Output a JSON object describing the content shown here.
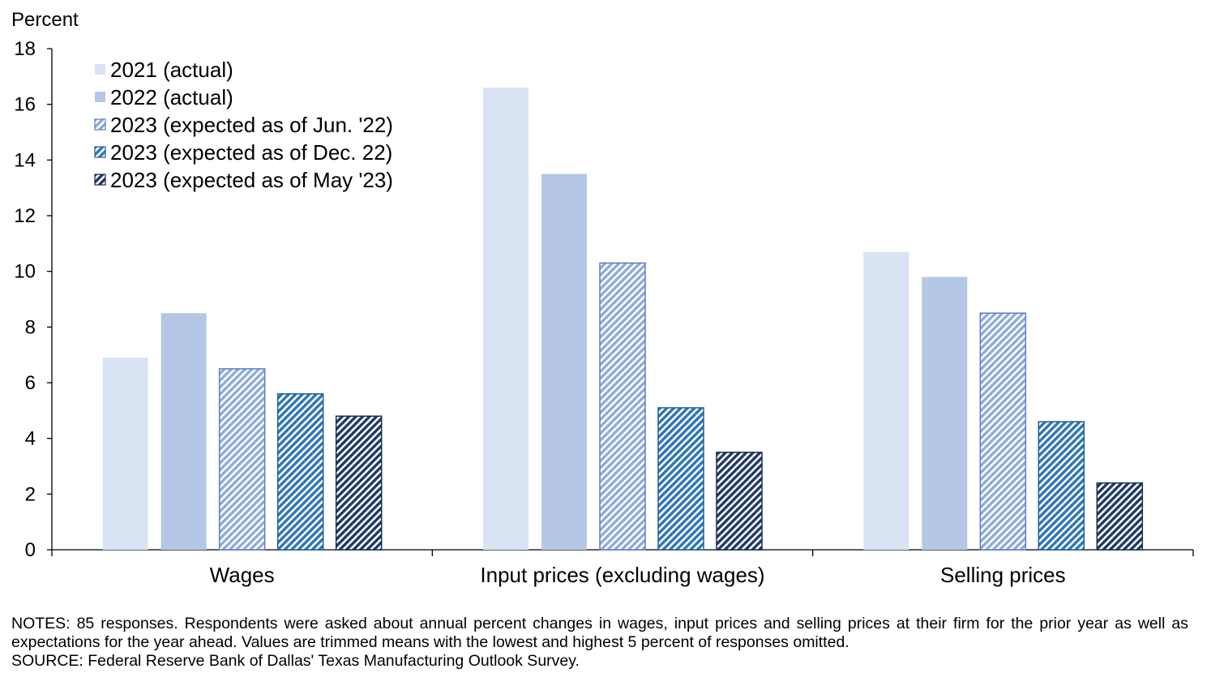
{
  "chart_data": {
    "type": "bar",
    "ylabel": "Percent",
    "ylim": [
      0,
      18
    ],
    "yticks": [
      0,
      2,
      4,
      6,
      8,
      10,
      12,
      14,
      16,
      18
    ],
    "categories": [
      "Wages",
      "Input prices (excluding wages)",
      "Selling prices"
    ],
    "series": [
      {
        "name": "2021 (actual)",
        "values": [
          6.9,
          16.6,
          10.7
        ],
        "color": "#dae3f3",
        "pattern": "solid"
      },
      {
        "name": "2022 (actual)",
        "values": [
          8.5,
          13.5,
          9.8
        ],
        "color": "#b4c7e7",
        "pattern": "solid"
      },
      {
        "name": "2023 (expected as of Jun. '22)",
        "values": [
          6.5,
          10.3,
          8.5
        ],
        "color": "#8faadc",
        "pattern": "hatch",
        "stroke": "#5b7fc4"
      },
      {
        "name": "2023 (expected as of Dec. 22)",
        "values": [
          5.6,
          5.1,
          4.6
        ],
        "color": "#2e75b6",
        "pattern": "hatch",
        "stroke": "#1f5f95"
      },
      {
        "name": "2023 (expected as of May '23)",
        "values": [
          4.8,
          3.5,
          2.4
        ],
        "color": "#203864",
        "pattern": "hatch",
        "stroke": "#1a2d4f"
      }
    ],
    "grid": false,
    "legend": "top-left"
  },
  "notes": {
    "line1": "NOTES: 85 responses. Respondents were asked about annual percent changes in wages, input prices and selling prices at their firm for the prior year as well as expectations for the year ahead. Values are trimmed means with the lowest and highest 5 percent of responses omitted.",
    "line2": "SOURCE: Federal Reserve Bank of Dallas' Texas Manufacturing Outlook Survey."
  }
}
